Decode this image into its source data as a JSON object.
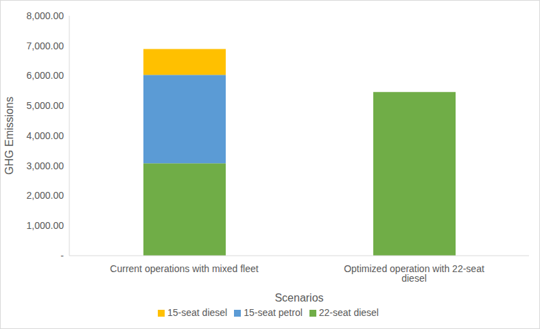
{
  "chart_data": {
    "type": "bar",
    "stacked": true,
    "grid": false,
    "legend": "bottom",
    "x_label": "Scenarios",
    "y_label": "GHG Emissions",
    "categories": [
      "Current operations with mixed fleet",
      "Optimized operation with 22-seat diesel"
    ],
    "series": [
      {
        "name": "22-seat diesel",
        "color": "#70ad47",
        "values": [
          3080,
          5460
        ]
      },
      {
        "name": "15-seat petrol",
        "color": "#5b9bd5",
        "values": [
          2950,
          0
        ]
      },
      {
        "name": "15-seat diesel",
        "color": "#ffc000",
        "values": [
          860,
          0
        ]
      }
    ],
    "ylim": [
      0,
      8000
    ],
    "yticks": [
      {
        "value": 0,
        "label": "-"
      },
      {
        "value": 1000,
        "label": "1,000.00"
      },
      {
        "value": 2000,
        "label": "2,000.00"
      },
      {
        "value": 3000,
        "label": "3,000.00"
      },
      {
        "value": 4000,
        "label": "4,000.00"
      },
      {
        "value": 5000,
        "label": "5,000.00"
      },
      {
        "value": 6000,
        "label": "6,000.00"
      },
      {
        "value": 7000,
        "label": "7,000.00"
      },
      {
        "value": 8000,
        "label": "8,000.00"
      }
    ]
  }
}
